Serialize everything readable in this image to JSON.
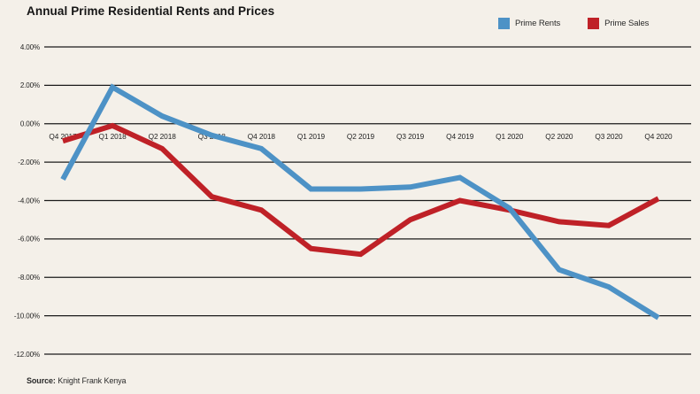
{
  "title": "Annual Prime Residential Rents and Prices",
  "source": {
    "label": "Source:",
    "text": " Knight Frank Kenya"
  },
  "colors": {
    "background": "#f4f0e9",
    "rents": "#4d92c6",
    "sales": "#bf2127",
    "grid": "#1b1b1b",
    "axis_text": "#222222"
  },
  "legend": [
    {
      "name": "Prime Rents",
      "color": "#4d92c6"
    },
    {
      "name": "Prime Sales",
      "color": "#bf2127"
    }
  ],
  "chart_data": {
    "type": "line",
    "title": "Annual Prime Residential Rents and Prices",
    "categories": [
      "Q4 2017",
      "Q1 2018",
      "Q2 2018",
      "Q3 2018",
      "Q4 2018",
      "Q1 2019",
      "Q2 2019",
      "Q3 2019",
      "Q4 2019",
      "Q1 2020",
      "Q2 2020",
      "Q3 2020",
      "Q4 2020"
    ],
    "series": [
      {
        "name": "Prime Rents",
        "color": "#4d92c6",
        "values": [
          -2.9,
          1.9,
          0.4,
          -0.6,
          -1.3,
          -3.4,
          -3.4,
          -3.3,
          -2.8,
          -4.4,
          -7.6,
          -8.5,
          -10.1
        ]
      },
      {
        "name": "Prime Sales",
        "color": "#bf2127",
        "values": [
          -0.9,
          -0.1,
          -1.3,
          -3.8,
          -4.5,
          -6.5,
          -6.8,
          -5.0,
          -4.0,
          -4.5,
          -5.1,
          -5.3,
          -3.9
        ]
      }
    ],
    "xlabel": "",
    "ylabel": "",
    "ylim": [
      -12,
      4
    ],
    "ytick_step": 2,
    "ytick_labels": [
      "4.00%",
      "2.00%",
      "0.00%",
      "-2.00%",
      "-4.00%",
      "-6.00%",
      "-8.00%",
      "-10.00%",
      "-12.00%"
    ],
    "grid": true,
    "legend_position": "top-right"
  }
}
